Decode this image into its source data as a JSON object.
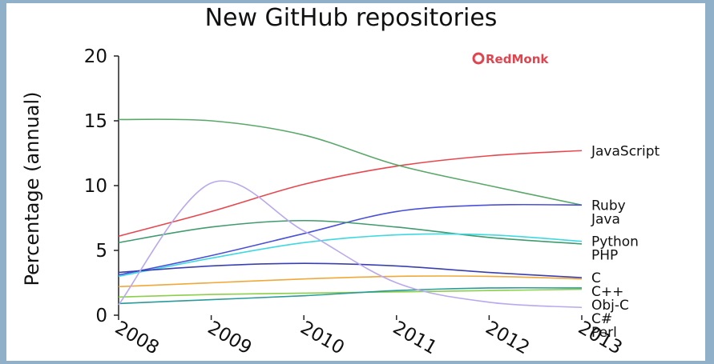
{
  "chart_data": {
    "type": "line",
    "title": "New GitHub repositories",
    "ylabel": "Percentage (annual)",
    "xlabel": "",
    "ylim": [
      0,
      20
    ],
    "yticks": [
      0,
      5,
      10,
      15,
      20
    ],
    "x": [
      2008,
      2009,
      2010,
      2011,
      2012,
      2013
    ],
    "xtick_labels": [
      "2008",
      "2009",
      "2010",
      "2011",
      "2012",
      "2013"
    ],
    "brand": "RedMonk",
    "brand_color": "#e0454f",
    "series": [
      {
        "name": "JavaScript",
        "color": "#e8474e",
        "values": [
          6.1,
          8.0,
          10.1,
          11.5,
          12.3,
          12.7
        ]
      },
      {
        "name": "Ruby",
        "color": "#5aa869",
        "values": [
          15.1,
          15.0,
          13.9,
          11.6,
          10.0,
          8.5
        ]
      },
      {
        "name": "Java",
        "color": "#4a50d8",
        "values": [
          3.1,
          4.6,
          6.3,
          8.0,
          8.5,
          8.5
        ]
      },
      {
        "name": "PHP",
        "color": "#3f9b6e",
        "values": [
          5.6,
          6.8,
          7.3,
          6.8,
          6.0,
          5.5
        ]
      },
      {
        "name": "Python",
        "color": "#3fd8e0",
        "values": [
          3.0,
          4.4,
          5.6,
          6.2,
          6.2,
          5.7
        ]
      },
      {
        "name": "C",
        "color": "#3a3fb0",
        "values": [
          3.3,
          3.8,
          4.0,
          3.8,
          3.3,
          2.9
        ]
      },
      {
        "name": "C++",
        "color": "#f0a838",
        "values": [
          2.2,
          2.5,
          2.8,
          3.0,
          3.0,
          2.8
        ]
      },
      {
        "name": "C#",
        "color": "#8ccf4a",
        "values": [
          1.4,
          1.6,
          1.7,
          1.8,
          1.9,
          2.0
        ]
      },
      {
        "name": "Obj-C",
        "color": "#2a9a9a",
        "values": [
          0.9,
          1.2,
          1.5,
          1.9,
          2.1,
          2.1
        ]
      },
      {
        "name": "Perl",
        "color": "#b9a8ee",
        "values": [
          0.8,
          10.2,
          6.5,
          2.5,
          1.0,
          0.6
        ]
      }
    ]
  }
}
